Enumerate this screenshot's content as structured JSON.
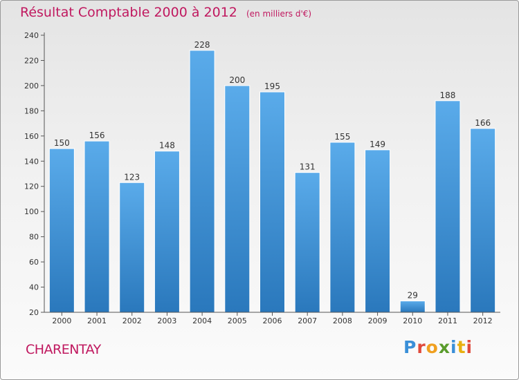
{
  "page": {
    "title": "Résultat Comptable 2000 à 2012",
    "unit": "(en milliers d'€)",
    "commune": "CHARENTAY",
    "logo": [
      "P",
      "r",
      "o",
      "x",
      "i",
      "t",
      "i"
    ]
  },
  "colors": {
    "title": "#c0185f",
    "bar_light": "#5aabea",
    "bar_dark": "#2a78bc"
  },
  "chart_data": {
    "type": "bar",
    "title": "Résultat Comptable 2000 à 2012 (en milliers d'€)",
    "xlabel": "",
    "ylabel": "",
    "categories": [
      "2000",
      "2001",
      "2002",
      "2003",
      "2004",
      "2005",
      "2006",
      "2007",
      "2008",
      "2009",
      "2010",
      "2011",
      "2012"
    ],
    "values": [
      150,
      156,
      123,
      148,
      228,
      200,
      195,
      131,
      155,
      149,
      29,
      188,
      166
    ],
    "ylim": [
      20,
      240
    ],
    "yticks": [
      20,
      40,
      60,
      80,
      100,
      120,
      140,
      160,
      180,
      200,
      220,
      240
    ],
    "grid": false,
    "legend": "none"
  }
}
